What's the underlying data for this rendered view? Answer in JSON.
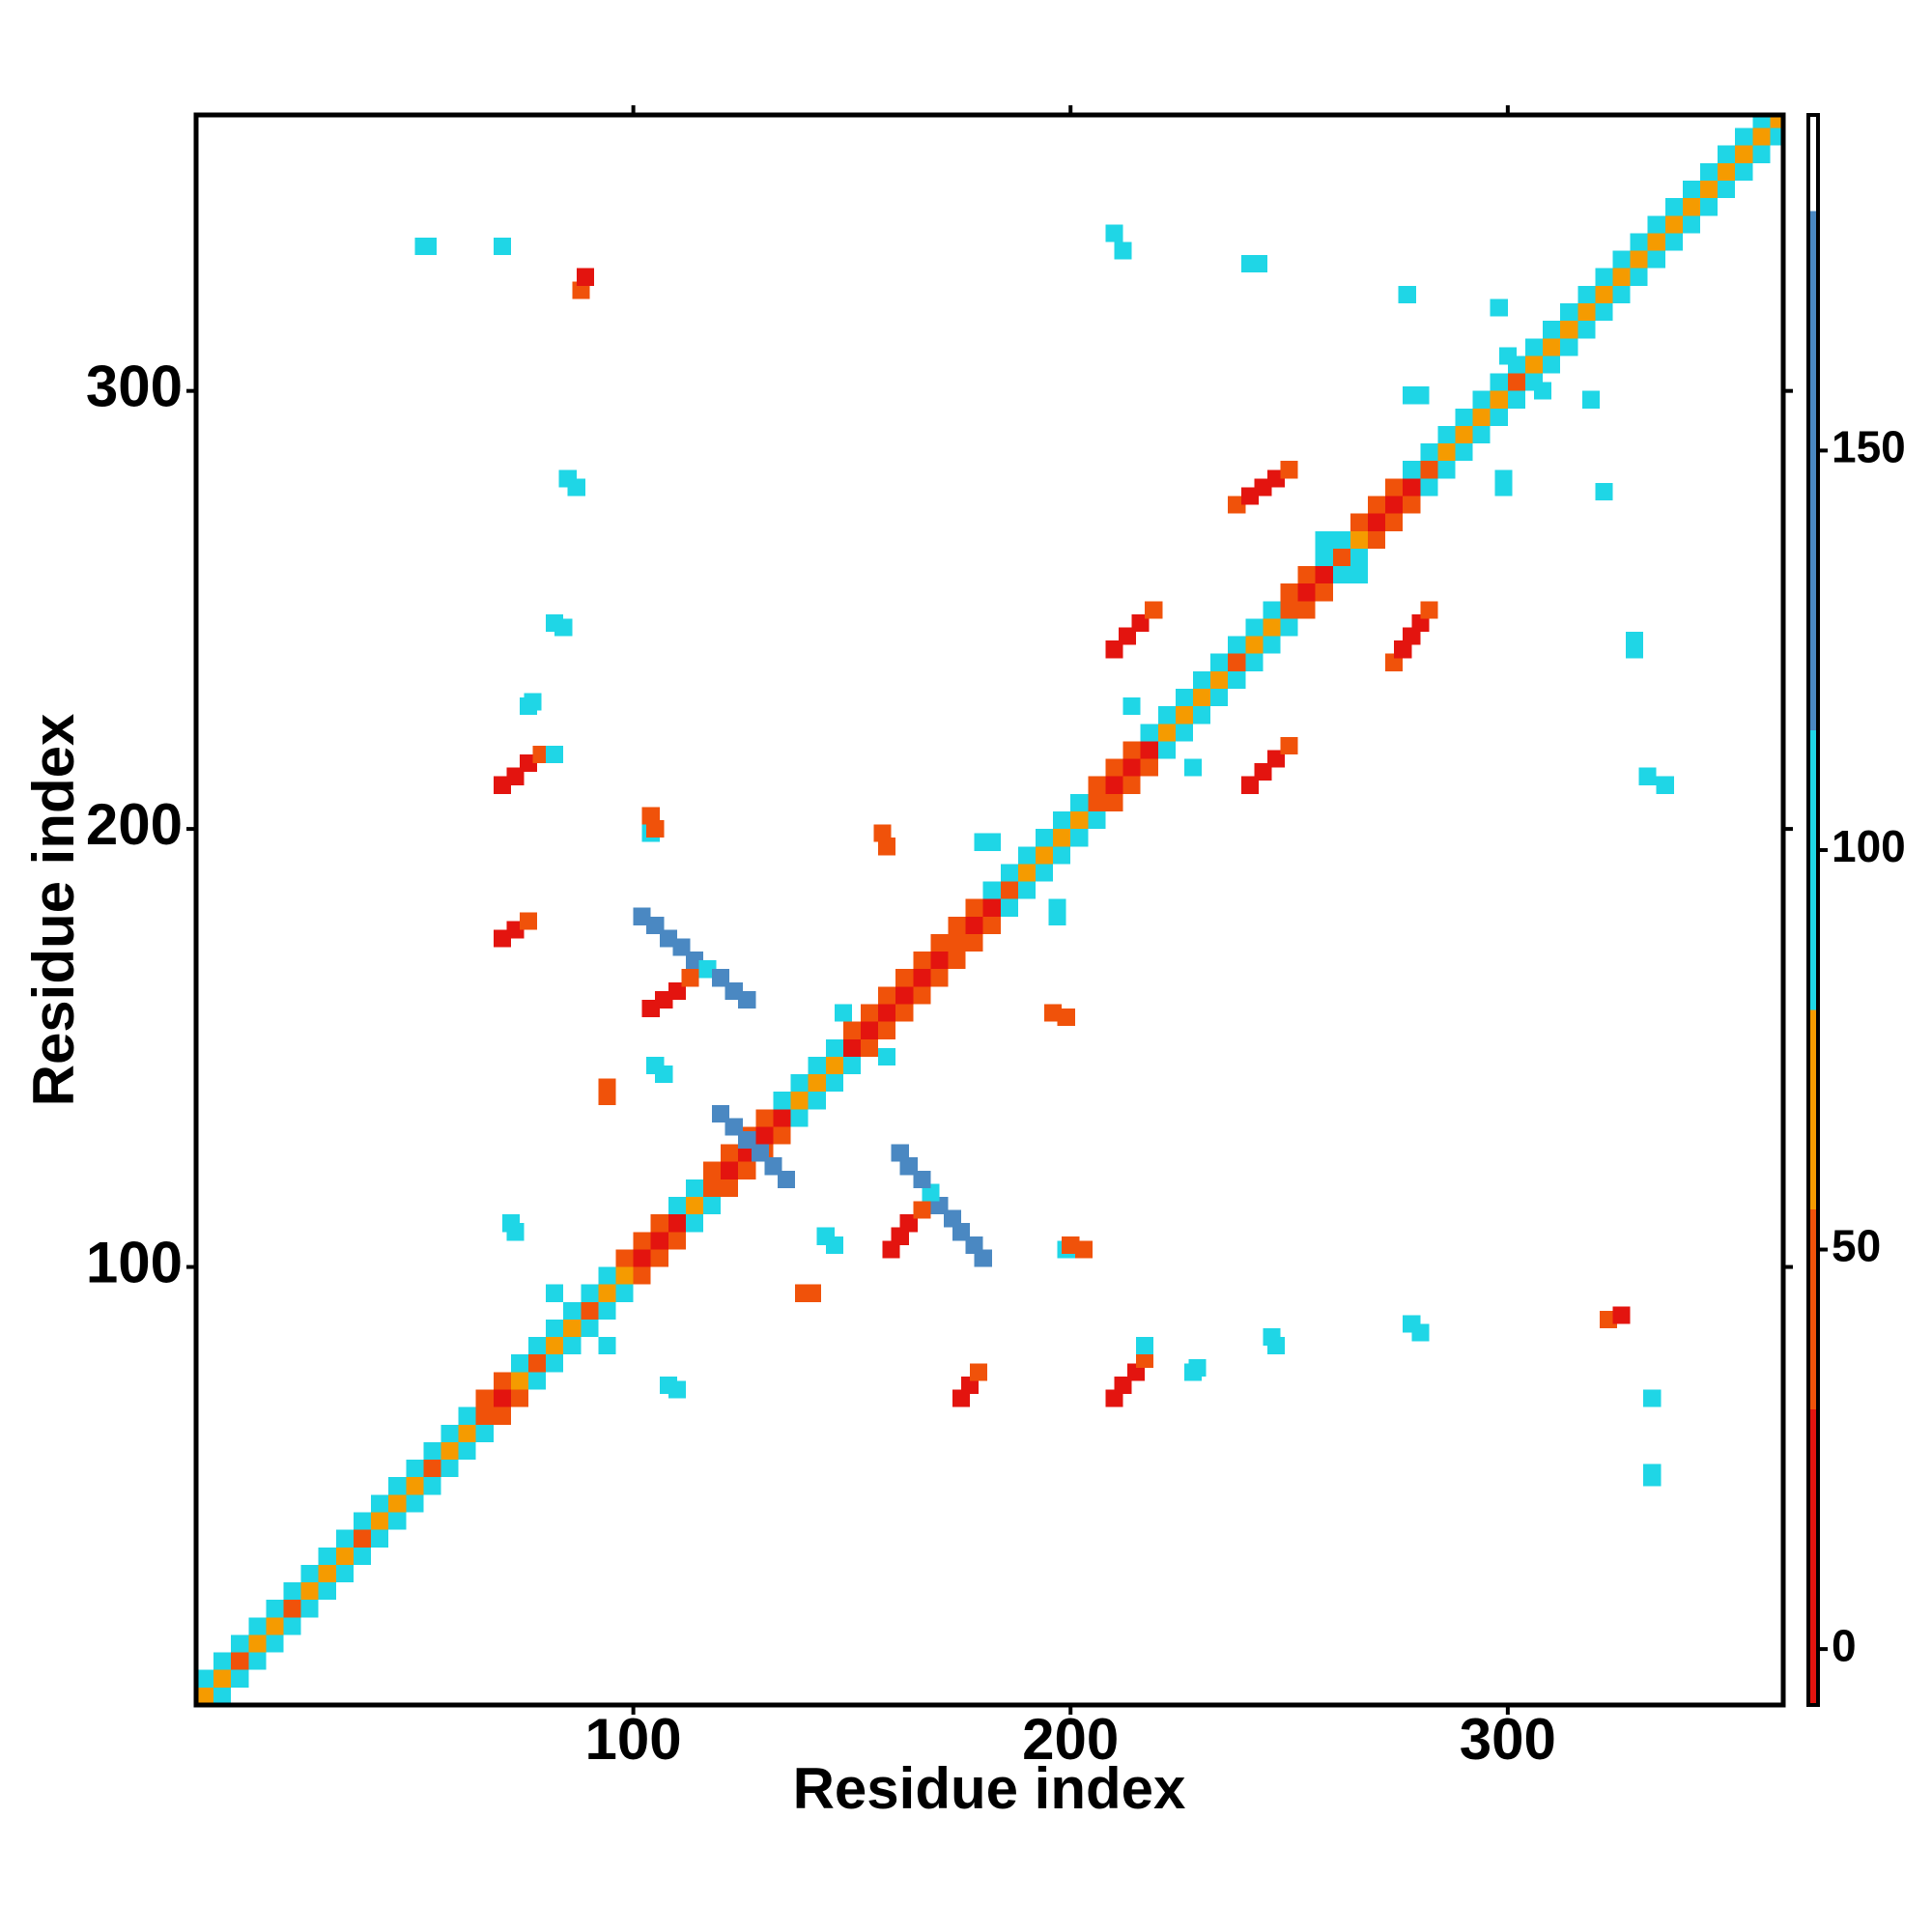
{
  "chart_data": {
    "type": "heatmap",
    "xlabel": "Residue index",
    "ylabel": "Residue index",
    "xlim": [
      0,
      363
    ],
    "ylim": [
      0,
      363
    ],
    "xticks": [
      100,
      200,
      300
    ],
    "yticks": [
      100,
      200,
      300
    ],
    "symmetric": true,
    "colorbar": {
      "zlim": [
        -7,
        192
      ],
      "zticks": [
        0,
        50,
        100,
        150
      ],
      "bounds": [
        -7,
        30,
        55,
        80,
        115,
        180,
        192
      ],
      "colors": [
        "#e3140f",
        "#f0520a",
        "#f59b00",
        "#1fd6e6",
        "#4a88c2",
        "#ffffff"
      ]
    },
    "cells": [
      [
        2,
        2,
        60
      ],
      [
        6,
        6,
        60
      ],
      [
        10,
        10,
        40
      ],
      [
        14,
        14,
        60
      ],
      [
        18,
        18,
        60
      ],
      [
        22,
        22,
        40
      ],
      [
        26,
        26,
        60
      ],
      [
        30,
        30,
        60
      ],
      [
        34,
        34,
        60
      ],
      [
        38,
        38,
        40
      ],
      [
        42,
        42,
        60
      ],
      [
        46,
        46,
        60
      ],
      [
        50,
        50,
        60
      ],
      [
        54,
        54,
        40
      ],
      [
        58,
        58,
        60
      ],
      [
        62,
        62,
        60
      ],
      [
        66,
        66,
        40
      ],
      [
        70,
        70,
        10
      ],
      [
        74,
        74,
        60
      ],
      [
        78,
        78,
        40
      ],
      [
        82,
        82,
        60
      ],
      [
        86,
        86,
        60
      ],
      [
        90,
        90,
        40
      ],
      [
        94,
        94,
        60
      ],
      [
        98,
        98,
        60
      ],
      [
        102,
        102,
        10
      ],
      [
        106,
        106,
        10
      ],
      [
        110,
        110,
        10
      ],
      [
        114,
        114,
        60
      ],
      [
        118,
        118,
        40
      ],
      [
        122,
        122,
        10
      ],
      [
        126,
        126,
        10
      ],
      [
        130,
        130,
        10
      ],
      [
        134,
        134,
        10
      ],
      [
        138,
        138,
        60
      ],
      [
        142,
        142,
        60
      ],
      [
        146,
        146,
        60
      ],
      [
        150,
        150,
        10
      ],
      [
        154,
        154,
        10
      ],
      [
        158,
        158,
        10
      ],
      [
        162,
        162,
        10
      ],
      [
        166,
        166,
        10
      ],
      [
        170,
        170,
        10
      ],
      [
        174,
        174,
        40
      ],
      [
        178,
        178,
        10
      ],
      [
        182,
        182,
        10
      ],
      [
        186,
        186,
        40
      ],
      [
        190,
        190,
        60
      ],
      [
        194,
        194,
        60
      ],
      [
        198,
        198,
        60
      ],
      [
        202,
        202,
        60
      ],
      [
        206,
        206,
        40
      ],
      [
        210,
        210,
        10
      ],
      [
        214,
        214,
        10
      ],
      [
        218,
        218,
        10
      ],
      [
        222,
        222,
        60
      ],
      [
        226,
        226,
        60
      ],
      [
        230,
        230,
        60
      ],
      [
        234,
        234,
        60
      ],
      [
        238,
        238,
        40
      ],
      [
        242,
        242,
        60
      ],
      [
        246,
        246,
        60
      ],
      [
        250,
        250,
        40
      ],
      [
        254,
        254,
        10
      ],
      [
        258,
        258,
        10
      ],
      [
        262,
        262,
        40
      ],
      [
        266,
        266,
        60
      ],
      [
        270,
        270,
        10
      ],
      [
        274,
        274,
        10
      ],
      [
        278,
        278,
        10
      ],
      [
        282,
        282,
        40
      ],
      [
        286,
        286,
        60
      ],
      [
        290,
        290,
        60
      ],
      [
        294,
        294,
        60
      ],
      [
        298,
        298,
        60
      ],
      [
        302,
        302,
        40
      ],
      [
        306,
        306,
        60
      ],
      [
        310,
        310,
        60
      ],
      [
        314,
        314,
        60
      ],
      [
        318,
        318,
        60
      ],
      [
        322,
        322,
        60
      ],
      [
        326,
        326,
        60
      ],
      [
        330,
        330,
        60
      ],
      [
        334,
        334,
        60
      ],
      [
        338,
        338,
        60
      ],
      [
        342,
        342,
        60
      ],
      [
        346,
        346,
        60
      ],
      [
        350,
        350,
        60
      ],
      [
        354,
        354,
        60
      ],
      [
        358,
        358,
        60
      ],
      [
        362,
        362,
        60
      ],
      [
        2,
        6,
        95
      ],
      [
        6,
        10,
        95
      ],
      [
        10,
        14,
        95
      ],
      [
        14,
        18,
        95
      ],
      [
        18,
        22,
        95
      ],
      [
        22,
        26,
        95
      ],
      [
        26,
        30,
        95
      ],
      [
        30,
        34,
        95
      ],
      [
        34,
        38,
        95
      ],
      [
        38,
        42,
        95
      ],
      [
        42,
        46,
        95
      ],
      [
        46,
        50,
        95
      ],
      [
        50,
        54,
        95
      ],
      [
        54,
        58,
        95
      ],
      [
        58,
        62,
        95
      ],
      [
        62,
        66,
        95
      ],
      [
        66,
        70,
        40
      ],
      [
        70,
        74,
        40
      ],
      [
        74,
        78,
        95
      ],
      [
        78,
        82,
        95
      ],
      [
        82,
        86,
        95
      ],
      [
        86,
        90,
        95
      ],
      [
        90,
        94,
        95
      ],
      [
        94,
        98,
        95
      ],
      [
        98,
        102,
        40
      ],
      [
        102,
        106,
        40
      ],
      [
        106,
        110,
        40
      ],
      [
        110,
        114,
        95
      ],
      [
        114,
        118,
        95
      ],
      [
        118,
        122,
        40
      ],
      [
        122,
        126,
        40
      ],
      [
        126,
        130,
        40
      ],
      [
        130,
        134,
        40
      ],
      [
        134,
        138,
        95
      ],
      [
        138,
        142,
        95
      ],
      [
        142,
        146,
        95
      ],
      [
        146,
        150,
        95
      ],
      [
        150,
        154,
        40
      ],
      [
        154,
        158,
        40
      ],
      [
        158,
        162,
        40
      ],
      [
        162,
        166,
        40
      ],
      [
        166,
        170,
        40
      ],
      [
        170,
        174,
        40
      ],
      [
        174,
        178,
        40
      ],
      [
        178,
        182,
        40
      ],
      [
        182,
        186,
        95
      ],
      [
        186,
        190,
        95
      ],
      [
        190,
        194,
        95
      ],
      [
        194,
        198,
        95
      ],
      [
        198,
        202,
        95
      ],
      [
        202,
        206,
        95
      ],
      [
        206,
        210,
        40
      ],
      [
        210,
        214,
        40
      ],
      [
        214,
        218,
        40
      ],
      [
        218,
        222,
        95
      ],
      [
        222,
        226,
        95
      ],
      [
        226,
        230,
        95
      ],
      [
        230,
        234,
        95
      ],
      [
        234,
        238,
        95
      ],
      [
        238,
        242,
        95
      ],
      [
        242,
        246,
        95
      ],
      [
        246,
        250,
        95
      ],
      [
        250,
        254,
        40
      ],
      [
        254,
        258,
        40
      ],
      [
        258,
        262,
        95
      ],
      [
        262,
        266,
        95
      ],
      [
        266,
        270,
        40
      ],
      [
        270,
        274,
        40
      ],
      [
        274,
        278,
        40
      ],
      [
        278,
        282,
        95
      ],
      [
        282,
        286,
        95
      ],
      [
        286,
        290,
        95
      ],
      [
        290,
        294,
        95
      ],
      [
        294,
        298,
        95
      ],
      [
        298,
        302,
        95
      ],
      [
        302,
        306,
        95
      ],
      [
        306,
        310,
        95
      ],
      [
        310,
        314,
        95
      ],
      [
        314,
        318,
        95
      ],
      [
        318,
        322,
        95
      ],
      [
        322,
        326,
        95
      ],
      [
        326,
        330,
        95
      ],
      [
        330,
        334,
        95
      ],
      [
        334,
        338,
        95
      ],
      [
        338,
        342,
        95
      ],
      [
        342,
        346,
        95
      ],
      [
        346,
        350,
        95
      ],
      [
        350,
        354,
        95
      ],
      [
        354,
        358,
        95
      ],
      [
        358,
        362,
        95
      ],
      [
        102,
        180,
        150
      ],
      [
        105,
        178,
        150
      ],
      [
        108,
        175,
        150
      ],
      [
        111,
        173,
        150
      ],
      [
        114,
        170,
        150
      ],
      [
        117,
        168,
        95
      ],
      [
        120,
        166,
        150
      ],
      [
        123,
        163,
        150
      ],
      [
        126,
        161,
        150
      ],
      [
        104,
        159,
        10
      ],
      [
        107,
        161,
        10
      ],
      [
        110,
        163,
        10
      ],
      [
        113,
        166,
        40
      ],
      [
        120,
        135,
        150
      ],
      [
        123,
        132,
        150
      ],
      [
        126,
        129,
        150
      ],
      [
        70,
        175,
        10
      ],
      [
        73,
        177,
        10
      ],
      [
        76,
        179,
        40
      ],
      [
        70,
        210,
        10
      ],
      [
        73,
        212,
        10
      ],
      [
        76,
        215,
        10
      ],
      [
        79,
        217,
        40
      ],
      [
        82,
        217,
        95
      ],
      [
        210,
        241,
        10
      ],
      [
        213,
        244,
        10
      ],
      [
        216,
        247,
        10
      ],
      [
        219,
        250,
        40
      ],
      [
        238,
        274,
        40
      ],
      [
        241,
        276,
        10
      ],
      [
        244,
        278,
        10
      ],
      [
        247,
        280,
        10
      ],
      [
        250,
        282,
        40
      ],
      [
        88,
        323,
        40
      ],
      [
        89,
        326,
        10
      ],
      [
        52,
        333,
        95
      ],
      [
        70,
        333,
        95
      ],
      [
        82,
        247,
        95
      ],
      [
        76,
        228,
        95
      ],
      [
        85,
        280,
        95
      ],
      [
        210,
        336,
        95
      ],
      [
        241,
        329,
        95
      ],
      [
        277,
        322,
        95
      ],
      [
        278,
        299,
        95
      ],
      [
        298,
        319,
        95
      ],
      [
        299,
        280,
        95
      ],
      [
        329,
        243,
        95
      ],
      [
        332,
        212,
        95
      ],
      [
        278,
        87,
        95
      ],
      [
        246,
        84,
        95
      ],
      [
        229,
        77,
        95
      ],
      [
        333,
        53,
        95
      ],
      [
        108,
        73,
        95
      ],
      [
        72,
        110,
        95
      ],
      [
        105,
        146,
        95
      ],
      [
        144,
        107,
        95
      ],
      [
        199,
        104,
        95
      ],
      [
        197,
        180,
        95
      ],
      [
        182,
        197,
        95
      ],
      [
        157,
        199,
        40
      ],
      [
        104,
        203,
        40
      ],
      [
        94,
        141,
        40
      ],
      [
        196,
        158,
        40
      ],
      [
        139,
        94,
        40
      ],
      [
        200,
        105,
        40
      ],
      [
        82,
        94,
        95
      ],
      [
        148,
        158,
        95
      ],
      [
        214,
        228,
        95
      ],
      [
        300,
        308,
        95
      ],
      [
        258,
        266,
        95
      ]
    ]
  }
}
